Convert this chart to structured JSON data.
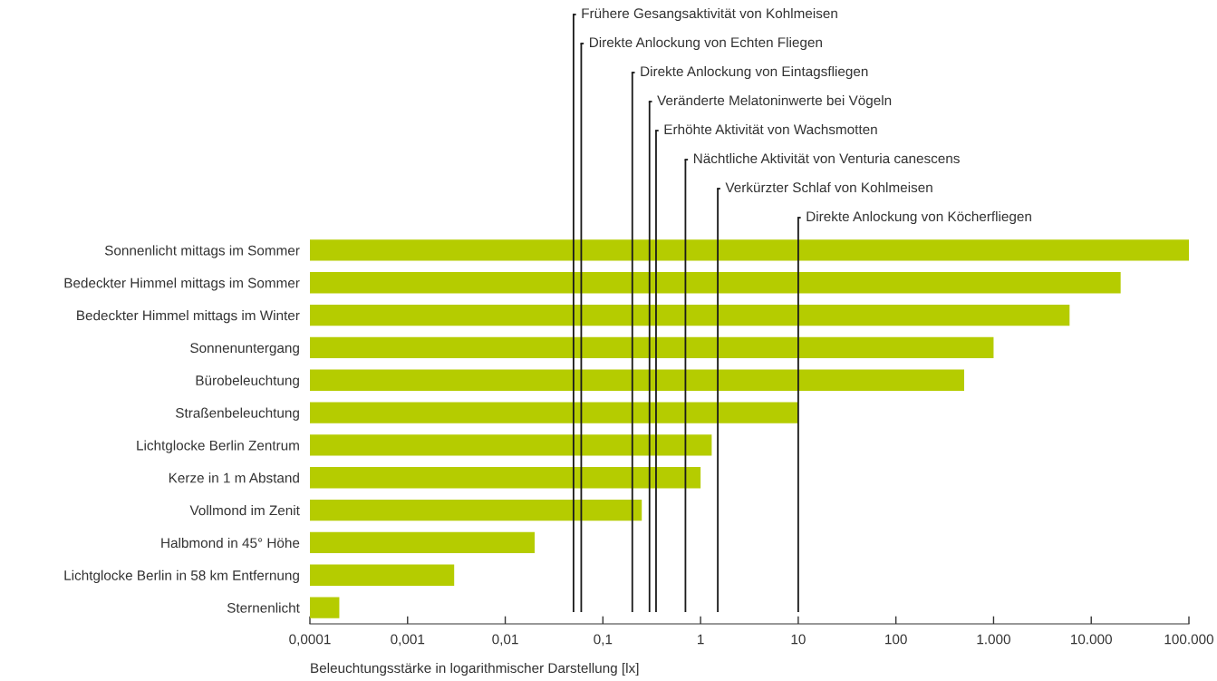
{
  "chart_data": {
    "type": "bar",
    "orientation": "horizontal",
    "log": "x",
    "xlabel": "Beleuchtungsstärke in logarithmischer Darstellung [lx]",
    "categories": [
      "Sonnenlicht mittags im Sommer",
      "Bedeckter Himmel mittags im Sommer",
      "Bedeckter Himmel mittags im Winter",
      "Sonnenuntergang",
      "Bürobeleuchtung",
      "Straßenbeleuchtung",
      "Lichtglocke Berlin Zentrum",
      "Kerze in 1 m Abstand",
      "Vollmond im Zenit",
      "Halbmond in 45° Höhe",
      "Lichtglocke Berlin in 58 km Entfernung",
      "Sternenlicht"
    ],
    "values": [
      100000,
      20000,
      6000,
      1000,
      500,
      10,
      1.3,
      1,
      0.25,
      0.02,
      0.003,
      0.0002
    ],
    "color": "#b5cc00",
    "xlim": [
      0.0001,
      100000
    ],
    "xticks": [
      {
        "value": 0.0001,
        "label": "0,0001"
      },
      {
        "value": 0.001,
        "label": "0,001"
      },
      {
        "value": 0.01,
        "label": "0,01"
      },
      {
        "value": 0.1,
        "label": "0,1"
      },
      1,
      10,
      100,
      {
        "value": 1000,
        "label": "1.000"
      },
      {
        "value": 10000,
        "label": "10.000"
      },
      {
        "value": 100000,
        "label": "100.000"
      }
    ],
    "ref_lines": [
      {
        "axis": "x",
        "value": 0.05,
        "label": "Frühere Gesangsaktivität von Kohlmeisen",
        "color": "#1a1a1a"
      },
      {
        "axis": "x",
        "value": 0.06,
        "label": "Direkte Anlockung von Echten Fliegen",
        "color": "#1a1a1a"
      },
      {
        "axis": "x",
        "value": 0.2,
        "label": "Direkte Anlockung von Eintagsfliegen",
        "color": "#1a1a1a"
      },
      {
        "axis": "x",
        "value": 0.3,
        "label": "Veränderte Melatoninwerte bei Vögeln",
        "color": "#1a1a1a"
      },
      {
        "axis": "x",
        "value": 0.35,
        "label": "Erhöhte Aktivität von Wachsmotten",
        "color": "#1a1a1a"
      },
      {
        "axis": "x",
        "value": 0.7,
        "label": "Nächtliche Aktivität von Venturia canescens",
        "color": "#1a1a1a"
      },
      {
        "axis": "x",
        "value": 1.5,
        "label": "Verkürzter Schlaf von Kohlmeisen",
        "color": "#1a1a1a"
      },
      {
        "axis": "x",
        "value": 10,
        "label": "Direkte Anlockung von Köcherfliegen",
        "color": "#1a1a1a"
      }
    ],
    "grid": false,
    "legend": false
  }
}
